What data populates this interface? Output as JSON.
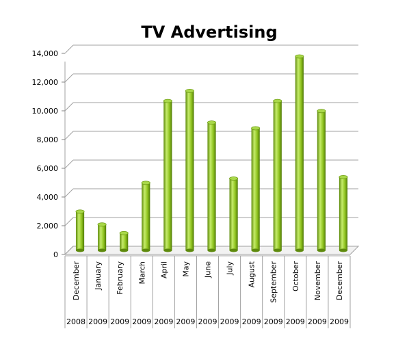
{
  "chart_data": {
    "type": "bar",
    "title": "TV Advertising",
    "xlabel": "",
    "ylabel": "",
    "ylim": [
      0,
      14000
    ],
    "yticks": [
      0,
      2000,
      4000,
      6000,
      8000,
      10000,
      12000,
      14000
    ],
    "ytick_labels": [
      "0",
      "2,000",
      "4,000",
      "6,000",
      "8,000",
      "10,000",
      "12,000",
      "14,000"
    ],
    "categories": [
      "December",
      "January",
      "February",
      "March",
      "April",
      "May",
      "June",
      "July",
      "August",
      "September",
      "October",
      "November",
      "December"
    ],
    "years": [
      "2008",
      "2009",
      "2009",
      "2009",
      "2009",
      "2009",
      "2009",
      "2009",
      "2009",
      "2009",
      "2009",
      "2009",
      "2009"
    ],
    "values": [
      2700,
      1800,
      1200,
      4700,
      10400,
      11100,
      8900,
      5000,
      8500,
      10400,
      13500,
      9700,
      5100
    ],
    "grid": true,
    "legend": "none",
    "colors": {
      "bar": "#8fc31f",
      "bar_dark": "#5e8a0c",
      "bar_light": "#c5ec6a",
      "grid": "#a0a0a0",
      "wall": "#d9d9d9"
    }
  }
}
